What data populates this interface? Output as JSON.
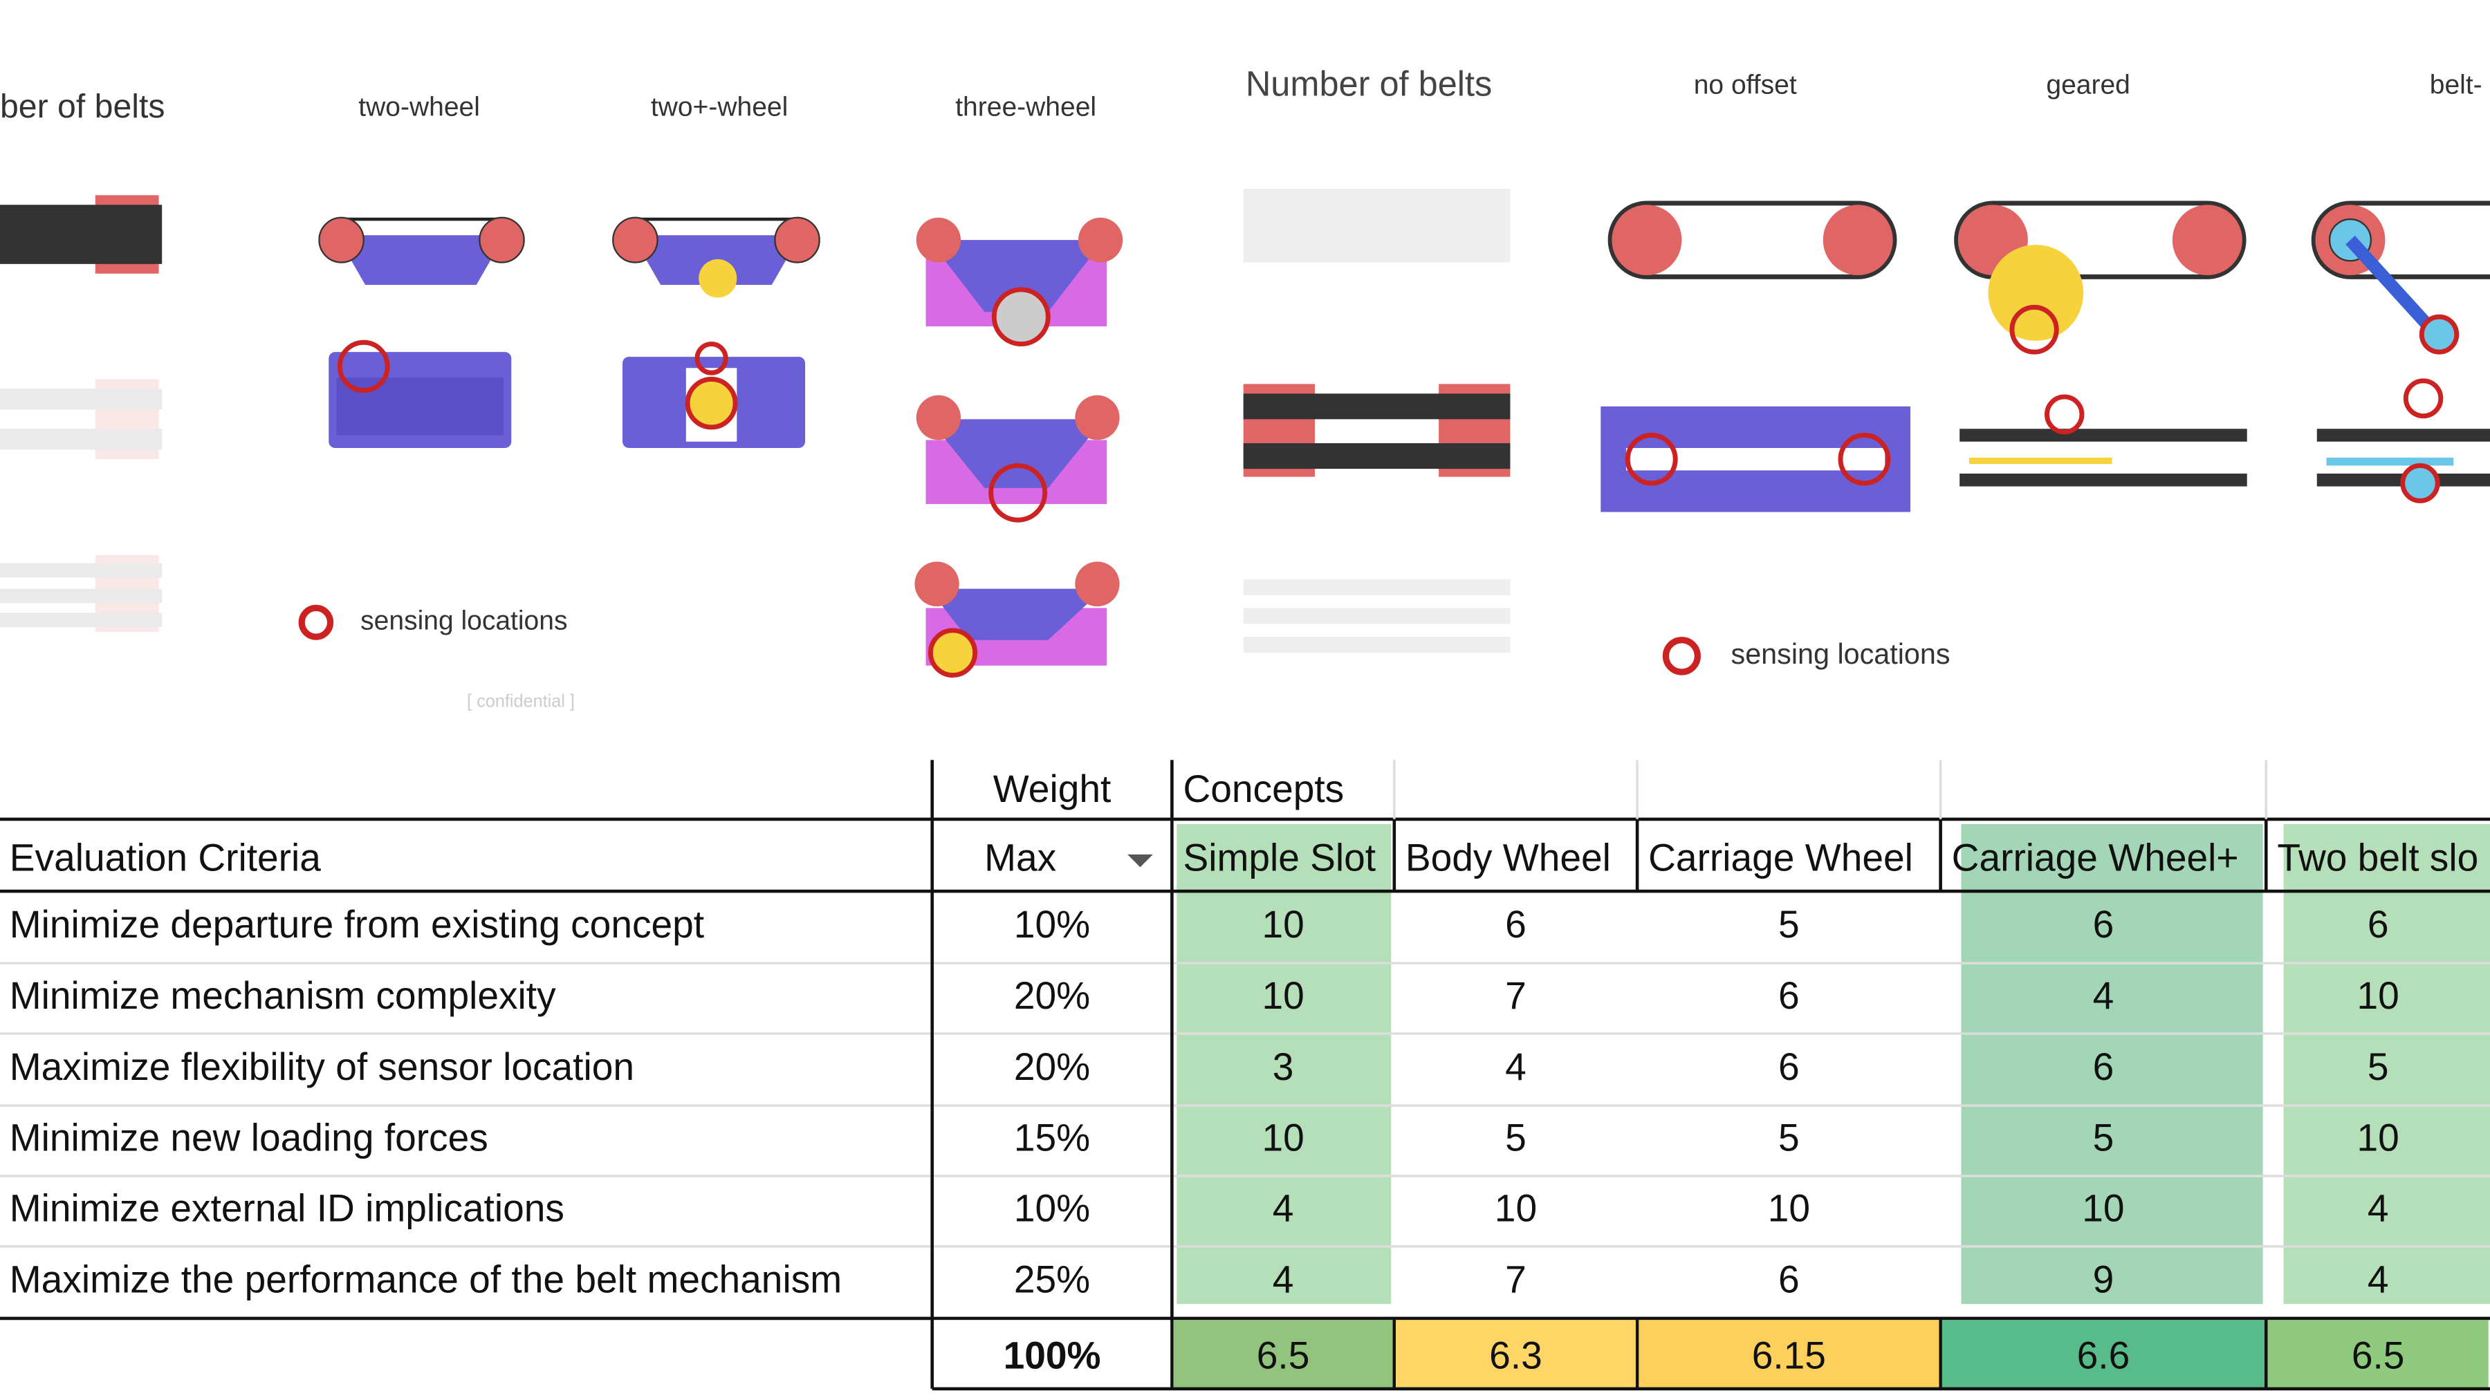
{
  "left_panel": {
    "heading": "ber of belts",
    "labels": [
      "two-wheel",
      "two+-wheel",
      "three-wheel"
    ],
    "legend": "sensing locations",
    "footer": "[ confidential ]"
  },
  "right_panel": {
    "heading": "Number of belts",
    "labels": [
      "no offset",
      "geared",
      "belt-"
    ],
    "legend": "sensing locations"
  },
  "table": {
    "group_headers": [
      "Weight",
      "Concepts"
    ],
    "headers": [
      "Evaluation Criteria",
      "Max",
      "Simple Slot",
      "Body Wheel",
      "Carriage Wheel",
      "Carriage Wheel+",
      "Two belt slo"
    ],
    "rows": [
      [
        "Minimize departure from existing concept",
        "10%",
        10,
        6,
        5,
        6,
        6
      ],
      [
        "Minimize mechanism complexity",
        "20%",
        10,
        7,
        6,
        4,
        10
      ],
      [
        "Maximize flexibility of sensor location",
        "20%",
        3,
        4,
        6,
        6,
        5
      ],
      [
        "Minimize new loading forces",
        "15%",
        10,
        5,
        5,
        5,
        10
      ],
      [
        "Minimize external ID implications",
        "10%",
        4,
        10,
        10,
        10,
        4
      ],
      [
        "Maximize the performance of the belt mechanism",
        "25%",
        4,
        7,
        6,
        9,
        4
      ]
    ],
    "totals": [
      "100%",
      6.5,
      6.3,
      6.15,
      6.6,
      6.5
    ]
  }
}
